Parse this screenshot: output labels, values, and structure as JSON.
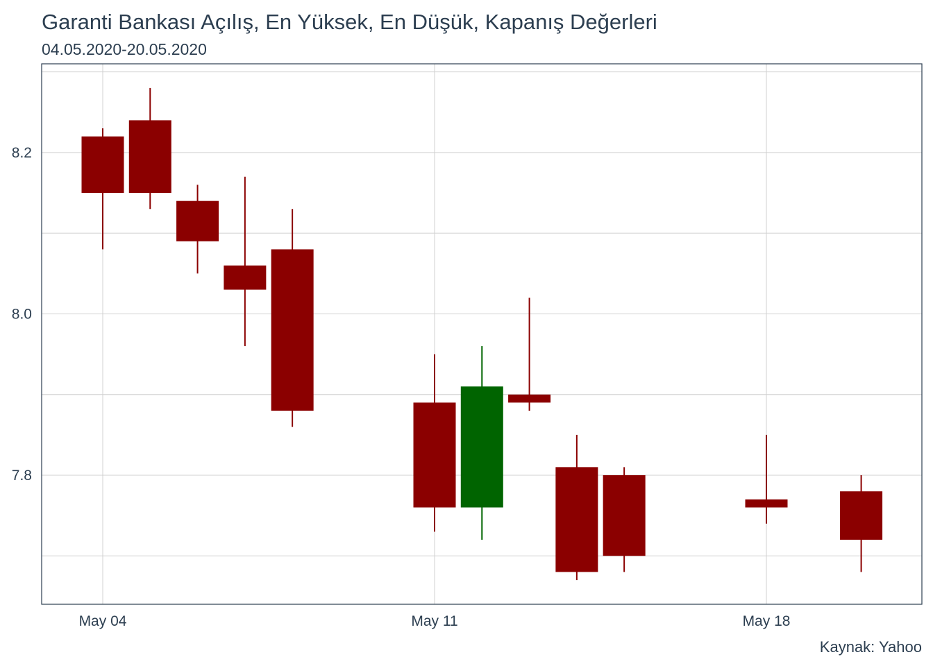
{
  "header": {
    "title": "Garanti Bankası Açılış, En Yüksek, En Düşük, Kapanış Değerleri",
    "subtitle": "04.05.2020-20.05.2020"
  },
  "caption": "Kaynak: Yahoo",
  "chart_data": {
    "type": "candlestick",
    "x_ticks": [
      "May 04",
      "May 11",
      "May 18"
    ],
    "y_ticks": [
      "7.8",
      "8.0",
      "8.2"
    ],
    "ylim": [
      7.64,
      8.31
    ],
    "grid": true,
    "colors": {
      "down": "#8b0000",
      "up": "#006400",
      "grid": "#d0d0d0",
      "border": "#2c3e50"
    },
    "candles": [
      {
        "date": "2020-05-04",
        "open": 8.22,
        "high": 8.23,
        "low": 8.08,
        "close": 8.15
      },
      {
        "date": "2020-05-05",
        "open": 8.24,
        "high": 8.28,
        "low": 8.13,
        "close": 8.15
      },
      {
        "date": "2020-05-06",
        "open": 8.14,
        "high": 8.16,
        "low": 8.05,
        "close": 8.09
      },
      {
        "date": "2020-05-07",
        "open": 8.06,
        "high": 8.17,
        "low": 7.96,
        "close": 8.03
      },
      {
        "date": "2020-05-08",
        "open": 8.08,
        "high": 8.13,
        "low": 7.86,
        "close": 7.88
      },
      {
        "date": "2020-05-11",
        "open": 7.89,
        "high": 7.95,
        "low": 7.73,
        "close": 7.76
      },
      {
        "date": "2020-05-12",
        "open": 7.76,
        "high": 7.96,
        "low": 7.72,
        "close": 7.91
      },
      {
        "date": "2020-05-13",
        "open": 7.9,
        "high": 8.02,
        "low": 7.88,
        "close": 7.89
      },
      {
        "date": "2020-05-14",
        "open": 7.81,
        "high": 7.85,
        "low": 7.67,
        "close": 7.68
      },
      {
        "date": "2020-05-15",
        "open": 7.8,
        "high": 7.81,
        "low": 7.68,
        "close": 7.7
      },
      {
        "date": "2020-05-18",
        "open": 7.77,
        "high": 7.85,
        "low": 7.74,
        "close": 7.76
      },
      {
        "date": "2020-05-20",
        "open": 7.78,
        "high": 7.8,
        "low": 7.68,
        "close": 7.72
      }
    ]
  }
}
